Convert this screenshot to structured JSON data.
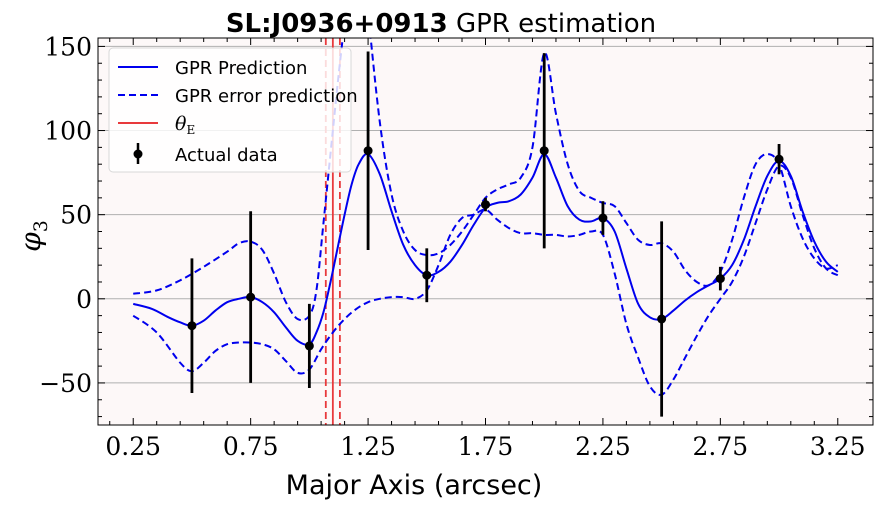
{
  "chart_data": {
    "type": "line",
    "title_bold": "SL:J0936+0913",
    "title_rest": " GPR estimation",
    "xlabel": "Major Axis (arcsec)",
    "ylabel": "φ",
    "ylabel_sub": "3",
    "xlim": [
      0.1,
      3.4
    ],
    "ylim": [
      -75,
      155
    ],
    "x_ticks": [
      0.25,
      0.75,
      1.25,
      1.75,
      2.25,
      2.75,
      3.25
    ],
    "x_tick_labels": [
      "0.25",
      "0.75",
      "1.25",
      "1.75",
      "2.25",
      "2.75",
      "3.25"
    ],
    "y_ticks": [
      -50,
      0,
      50,
      100,
      150
    ],
    "y_tick_labels": [
      "−50",
      "0",
      "50",
      "100",
      "150"
    ],
    "grid": "horizontal",
    "legend_position": "top-left",
    "colors": {
      "prediction": "#0000ee",
      "error": "#0000ee",
      "theta": "#e8393c",
      "data": "#000000",
      "background": "#fdf8f8",
      "grid": "#b0b0b0"
    },
    "legend": [
      {
        "label": "GPR Prediction",
        "style": "solid-line"
      },
      {
        "label": "GPR error prediction",
        "style": "dashed-line"
      },
      {
        "label": "θ",
        "sub": "E",
        "style": "red-line"
      },
      {
        "label": "Actual data",
        "style": "errorbar"
      }
    ],
    "series": [
      {
        "name": "GPR Prediction",
        "x": [
          0.25,
          0.33,
          0.4,
          0.45,
          0.5,
          0.55,
          0.6,
          0.65,
          0.7,
          0.75,
          0.8,
          0.85,
          0.9,
          0.95,
          1.0,
          1.03,
          1.06,
          1.09,
          1.12,
          1.15,
          1.18,
          1.21,
          1.25,
          1.3,
          1.35,
          1.4,
          1.45,
          1.5,
          1.55,
          1.6,
          1.65,
          1.7,
          1.75,
          1.8,
          1.85,
          1.9,
          1.95,
          2.0,
          2.05,
          2.1,
          2.15,
          2.2,
          2.25,
          2.3,
          2.35,
          2.4,
          2.45,
          2.5,
          2.55,
          2.6,
          2.65,
          2.7,
          2.75,
          2.8,
          2.85,
          2.9,
          2.95,
          3.0,
          3.05,
          3.1,
          3.15,
          3.2,
          3.25
        ],
        "y": [
          -3,
          -6,
          -11,
          -14,
          -16,
          -13,
          -7,
          -2,
          0,
          1,
          -2,
          -8,
          -17,
          -25,
          -27,
          -20,
          -8,
          10,
          30,
          50,
          68,
          80,
          86,
          74,
          52,
          32,
          20,
          14,
          16,
          22,
          32,
          44,
          54,
          57,
          58,
          62,
          72,
          86,
          72,
          55,
          47,
          46,
          48,
          40,
          18,
          -3,
          -11,
          -12,
          -7,
          -1,
          4,
          8,
          12,
          20,
          35,
          55,
          73,
          82,
          73,
          52,
          34,
          22,
          16
        ]
      },
      {
        "name": "GPR error prediction",
        "x": [
          0.25,
          0.35,
          0.45,
          0.55,
          0.65,
          0.7,
          0.75,
          0.8,
          0.85,
          0.9,
          0.95,
          1.0,
          1.03,
          1.06,
          1.1,
          1.13,
          1.16,
          1.19,
          1.22,
          1.25,
          1.3,
          1.35,
          1.4,
          1.45,
          1.5,
          1.55,
          1.6,
          1.65,
          1.7,
          1.75,
          1.8,
          1.85,
          1.9,
          1.95,
          2.0,
          2.05,
          2.1,
          2.15,
          2.2,
          2.25,
          2.3,
          2.35,
          2.4,
          2.45,
          2.5,
          2.55,
          2.6,
          2.65,
          2.7,
          2.75,
          2.8,
          2.85,
          2.9,
          2.95,
          3.0,
          3.05,
          3.1,
          3.15,
          3.2,
          3.25
        ],
        "y": [
          3,
          5,
          11,
          19,
          28,
          33,
          34,
          29,
          15,
          -2,
          -12,
          -10,
          5,
          45,
          100,
          140,
          175,
          200,
          210,
          170,
          105,
          62,
          40,
          29,
          26,
          27,
          32,
          40,
          50,
          60,
          65,
          68,
          72,
          90,
          146,
          110,
          80,
          64,
          60,
          57,
          55,
          45,
          35,
          32,
          33,
          28,
          17,
          10,
          8,
          16,
          35,
          60,
          80,
          86,
          80,
          55,
          36,
          24,
          18,
          20
        ]
      },
      {
        "name": "GPR error lower",
        "x": [
          0.25,
          0.35,
          0.45,
          0.5,
          0.55,
          0.6,
          0.65,
          0.7,
          0.75,
          0.8,
          0.85,
          0.9,
          0.95,
          1.0,
          1.05,
          1.1,
          1.15,
          1.2,
          1.25,
          1.3,
          1.35,
          1.4,
          1.45,
          1.5,
          1.55,
          1.6,
          1.65,
          1.7,
          1.75,
          1.8,
          1.85,
          1.9,
          1.95,
          2.0,
          2.05,
          2.1,
          2.15,
          2.2,
          2.25,
          2.3,
          2.35,
          2.4,
          2.45,
          2.5,
          2.55,
          2.6,
          2.65,
          2.7,
          2.75,
          2.8,
          2.85,
          2.9,
          2.95,
          3.0,
          3.05,
          3.1,
          3.15,
          3.2,
          3.25
        ],
        "y": [
          -10,
          -20,
          -38,
          -43,
          -38,
          -31,
          -27,
          -26,
          -26,
          -27,
          -30,
          -37,
          -44,
          -42,
          -30,
          -20,
          -12,
          -6,
          -2,
          0,
          1,
          1,
          0,
          5,
          20,
          38,
          48,
          50,
          53,
          47,
          42,
          39,
          39,
          38,
          38,
          37,
          38,
          40,
          38,
          15,
          -15,
          -35,
          -52,
          -57,
          -48,
          -35,
          -22,
          -10,
          0,
          10,
          25,
          45,
          65,
          79,
          72,
          50,
          30,
          18,
          14
        ]
      }
    ],
    "theta_E": [
      1.07,
      1.1,
      1.13
    ],
    "actual_data": {
      "name": "Actual data",
      "x": [
        0.5,
        0.75,
        1.0,
        1.25,
        1.5,
        1.75,
        2.0,
        2.25,
        2.5,
        2.75,
        3.0
      ],
      "y": [
        -16,
        1,
        -28,
        88,
        14,
        56,
        88,
        48,
        -12,
        12,
        83
      ],
      "yerr": [
        40,
        51,
        25,
        59,
        16,
        4,
        58,
        10,
        58,
        7,
        9
      ]
    }
  }
}
